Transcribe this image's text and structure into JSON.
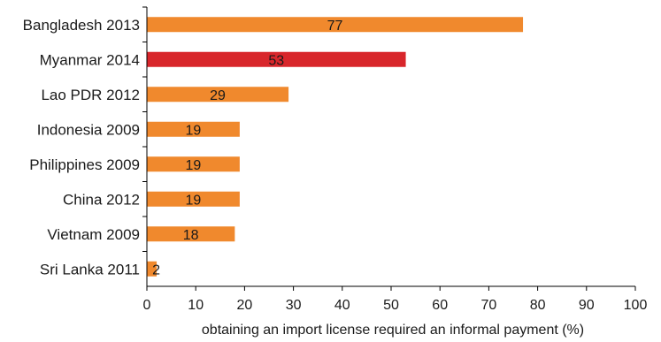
{
  "chart_data": {
    "type": "bar",
    "orientation": "horizontal",
    "categories": [
      "Bangladesh 2013",
      "Myanmar 2014",
      "Lao PDR 2012",
      "Indonesia 2009",
      "Philippines 2009",
      "China 2012",
      "Vietnam 2009",
      "Sri Lanka 2011"
    ],
    "values": [
      77,
      53,
      29,
      19,
      19,
      19,
      18,
      2
    ],
    "data_labels": [
      "77",
      "53",
      "29",
      "19",
      "19",
      "19",
      "18",
      "2"
    ],
    "xlabel": "obtaining an import license required an informal payment (%)",
    "ylabel": "",
    "xlim": [
      0,
      100
    ],
    "xticks": [
      "0",
      "10",
      "20",
      "30",
      "40",
      "50",
      "60",
      "70",
      "80",
      "90",
      "100"
    ],
    "grid": false,
    "legend": "none",
    "colors": {
      "default": "#F0892D",
      "highlight": "#D8262B",
      "highlight_category": "Myanmar 2014",
      "axis": "#000000"
    }
  }
}
